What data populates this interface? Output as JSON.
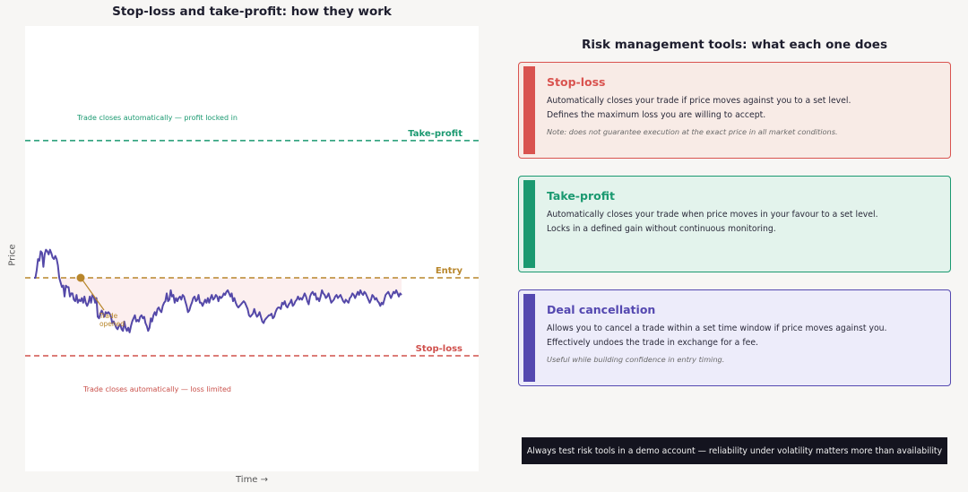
{
  "left_panel": {
    "title": "Stop-loss and take-profit: how they work",
    "ylabel": "Price",
    "xlabel": "Time →"
  },
  "chart_data": {
    "type": "line",
    "title": "Stop-loss and take-profit: how they work",
    "xlabel": "Time →",
    "ylabel": "Price",
    "levels": [
      {
        "name": "Take-profit",
        "value": 8.8,
        "color": "#1a9970"
      },
      {
        "name": "Entry",
        "value": 0,
        "color": "#b8862b"
      },
      {
        "name": "Stop-loss",
        "value": -5.0,
        "color": "#d0504c"
      }
    ],
    "ylim": [
      -12,
      16
    ],
    "annotations": {
      "take_profit_zone": "Trade closes automatically — profit locked in",
      "stop_loss_zone": "Trade closes automatically — loss limited",
      "entry_marker": [
        "Trade",
        "opened"
      ]
    },
    "series": [
      {
        "values": [
          0.0,
          0.0,
          0.5,
          1.2,
          1.1,
          1.7,
          1.6,
          0.7,
          1.5,
          1.8,
          1.7,
          1.5,
          1.8,
          1.6,
          1.3,
          1.2,
          1.4,
          1.2,
          0.8,
          0.0,
          -0.3,
          -0.6,
          -0.5,
          -1.2,
          -0.5,
          -0.6,
          -0.6,
          -1.2,
          -1.0,
          -1.0,
          -1.4,
          -1.5,
          -1.1,
          -1.6,
          -1.4,
          -1.5,
          -1.3,
          -1.6,
          -1.2,
          -1.6,
          -1.8,
          -1.6,
          -1.2,
          -1.6,
          -1.1,
          -1.2,
          -1.6,
          -1.3,
          -2.5,
          -2.6,
          -2.3,
          -2.1,
          -2.3,
          -2.5,
          -2.2,
          -2.3,
          -2.2,
          -2.3,
          -2.5,
          -2.9,
          -2.8,
          -3.0,
          -3.2,
          -3.3,
          -3.1,
          -3.0,
          -3.3,
          -3.4,
          -2.8,
          -3.2,
          -3.4,
          -3.2,
          -3.5,
          -3.1,
          -2.8,
          -2.6,
          -2.4,
          -2.8,
          -2.7,
          -2.8,
          -2.5,
          -2.4,
          -2.6,
          -2.5,
          -2.9,
          -3.1,
          -3.4,
          -3.2,
          -2.6,
          -2.8,
          -2.4,
          -2.2,
          -2.4,
          -2.0,
          -1.9,
          -2.1,
          -2.2,
          -1.8,
          -1.6,
          -1.5,
          -1.0,
          -1.5,
          -1.4,
          -0.8,
          -1.2,
          -1.1,
          -1.6,
          -1.3,
          -1.5,
          -1.3,
          -1.2,
          -1.4,
          -1.1,
          -1.2,
          -1.5,
          -1.8,
          -2.2,
          -2.1,
          -1.8,
          -1.6,
          -1.3,
          -1.2,
          -1.5,
          -1.4,
          -1.1,
          -1.6,
          -1.6,
          -1.8,
          -1.6,
          -1.4,
          -1.6,
          -1.3,
          -1.6,
          -1.3,
          -1.1,
          -1.4,
          -1.3,
          -1.1,
          -1.2,
          -1.5,
          -1.2,
          -1.3,
          -1.2,
          -1.0,
          -1.1,
          -0.9,
          -0.8,
          -1.0,
          -1.2,
          -1.0,
          -1.5,
          -1.3,
          -1.6,
          -1.8,
          -1.9,
          -1.8,
          -1.7,
          -1.6,
          -1.5,
          -1.6,
          -1.8,
          -2.0,
          -2.4,
          -2.5,
          -2.4,
          -2.3,
          -2.0,
          -2.3,
          -2.5,
          -2.4,
          -2.2,
          -2.5,
          -2.8,
          -2.9,
          -2.7,
          -2.6,
          -2.5,
          -2.4,
          -2.4,
          -2.3,
          -2.6,
          -2.5,
          -2.2,
          -2.0,
          -1.9,
          -1.9,
          -2.0,
          -1.6,
          -1.7,
          -1.5,
          -1.8,
          -1.9,
          -1.7,
          -1.6,
          -1.4,
          -1.8,
          -1.7,
          -1.5,
          -1.4,
          -1.2,
          -1.4,
          -1.3,
          -1.4,
          -1.2,
          -1.0,
          -1.2,
          -1.5,
          -1.7,
          -1.2,
          -1.0,
          -0.9,
          -1.1,
          -1.0,
          -1.4,
          -1.3,
          -1.5,
          -1.2,
          -0.8,
          -1.0,
          -1.1,
          -1.3,
          -1.2,
          -1.0,
          -1.3,
          -1.6,
          -1.5,
          -1.4,
          -1.2,
          -1.1,
          -1.3,
          -1.2,
          -1.1,
          -1.3,
          -1.5,
          -1.6,
          -1.4,
          -1.5,
          -1.6,
          -1.3,
          -1.2,
          -1.0,
          -1.1,
          -1.3,
          -1.1,
          -0.9,
          -1.1,
          -0.8,
          -1.0,
          -1.1,
          -0.9,
          -1.0,
          -1.2,
          -1.4,
          -1.6,
          -1.4,
          -1.1,
          -1.2,
          -1.4,
          -1.3,
          -1.5,
          -1.6,
          -1.8,
          -1.6,
          -1.7,
          -1.4,
          -1.1,
          -1.0,
          -0.9,
          -1.1,
          -1.3,
          -1.1,
          -0.9,
          -1.0,
          -0.8,
          -1.0,
          -1.2,
          -1.0,
          -1.1
        ]
      }
    ]
  },
  "right_panel": {
    "title": "Risk management tools: what each one does",
    "cards": [
      {
        "title": "Stop-loss",
        "lines": [
          "Automatically closes your trade if price moves against you to a set level.",
          "Defines the maximum loss you are willing to accept."
        ],
        "note": "Note: does not guarantee execution at the exact price in all market conditions.",
        "color": "#d9534f",
        "bg": "#f8ebe6"
      },
      {
        "title": "Take-profit",
        "lines": [
          "Automatically closes your trade when price moves in your favour to a set level.",
          "Locks in a defined gain without continuous monitoring."
        ],
        "note": "",
        "color": "#1a9970",
        "bg": "#e3f3ec"
      },
      {
        "title": "Deal cancellation",
        "lines": [
          "Allows you to cancel a trade within a set time window if price moves against you.",
          "Effectively undoes the trade in exchange for a fee."
        ],
        "note": "Useful while building confidence in entry timing.",
        "color": "#5448b0",
        "bg": "#edecfa"
      }
    ],
    "footer": "Always test risk tools in a demo account — reliability under volatility matters more than availability"
  }
}
